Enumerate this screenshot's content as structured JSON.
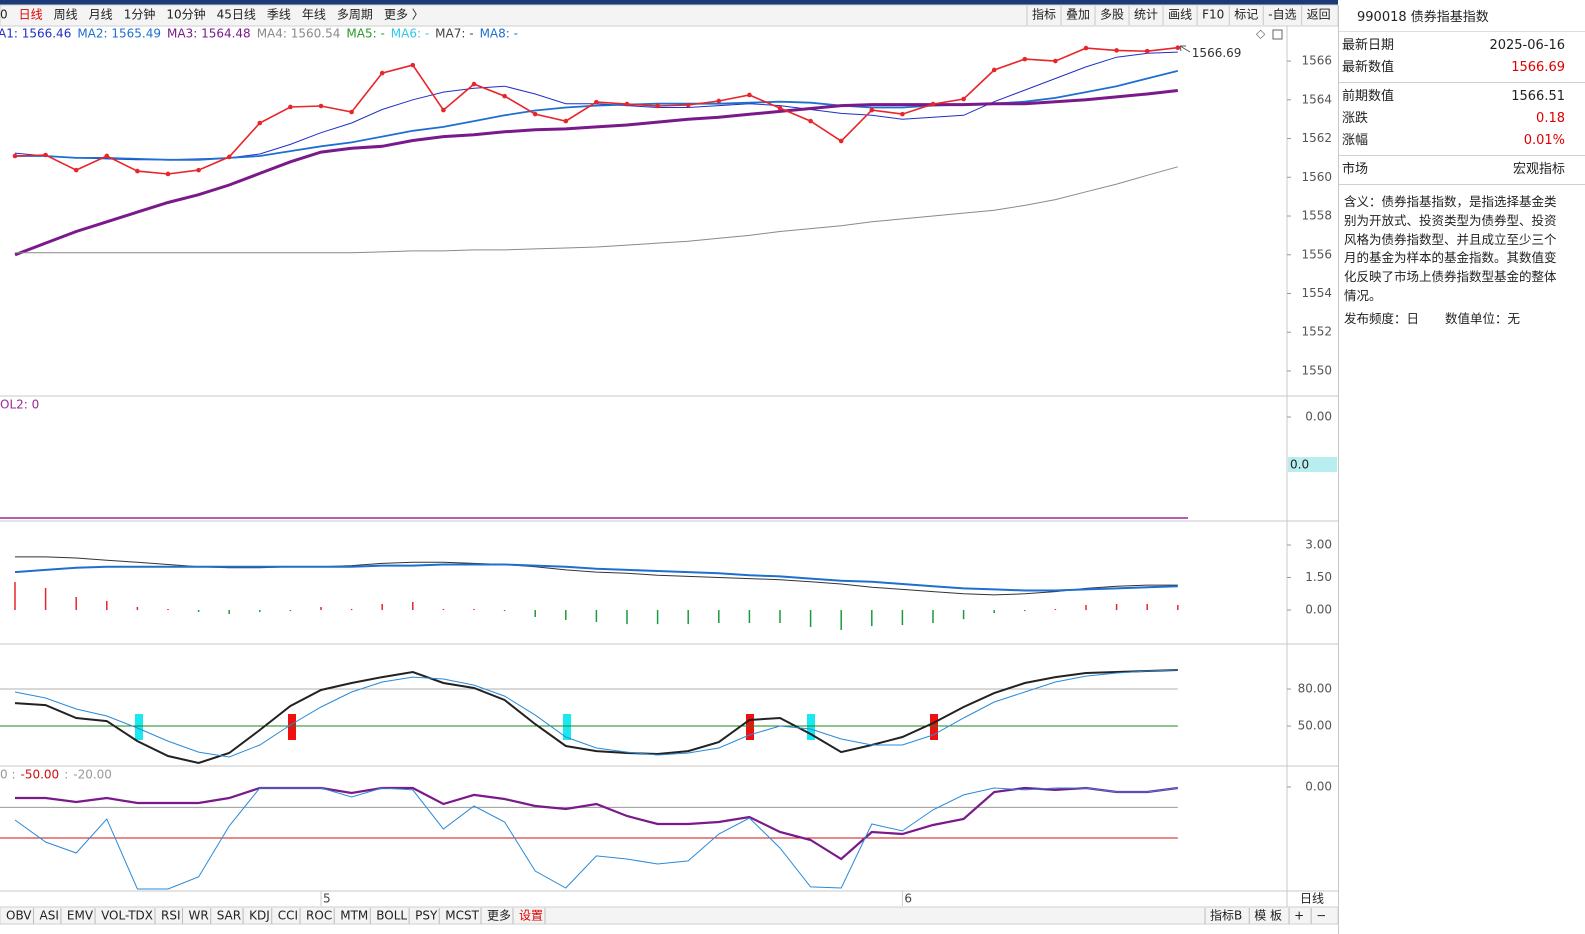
{
  "toolbar": {
    "left": [
      {
        "label": "0"
      },
      {
        "label": "日线",
        "active": true
      },
      {
        "label": "周线"
      },
      {
        "label": "月线"
      },
      {
        "label": "1分钟"
      },
      {
        "label": "10分钟"
      },
      {
        "label": "45日线"
      },
      {
        "label": "季线"
      },
      {
        "label": "年线"
      },
      {
        "label": "多周期"
      },
      {
        "label": "更多 〉"
      }
    ],
    "right": [
      "指标",
      "叠加",
      "多股",
      "统计",
      "画线",
      "F10",
      "标记",
      "-自选",
      "返回"
    ]
  },
  "chart_data": [
    {
      "type": "line",
      "categories": [
        null,
        null,
        null,
        null,
        null,
        null,
        null,
        null,
        null,
        null,
        "5",
        null,
        null,
        null,
        null,
        null,
        null,
        null,
        null,
        null,
        null,
        null,
        null,
        null,
        null,
        null,
        null,
        null,
        null,
        "6",
        null,
        null,
        null,
        null,
        null,
        null,
        null,
        null,
        null
      ],
      "ylim": [
        1548.76,
        1567.81
      ],
      "yticks": [
        1566,
        1564,
        1562,
        1560,
        1558,
        1556,
        1554,
        1552,
        1550
      ],
      "series": [
        {
          "label": "A1: 1566.46",
          "color": "#1f2fc8",
          "width": 1,
          "values": [
            1561.25,
            1561.1,
            1561.0,
            1560.95,
            1560.9,
            1560.9,
            1560.95,
            1561.0,
            1561.2,
            1561.7,
            1562.3,
            1562.8,
            1563.5,
            1564.0,
            1564.4,
            1564.6,
            1564.7,
            1564.3,
            1563.8,
            1563.8,
            1563.7,
            1563.6,
            1563.6,
            1563.7,
            1563.8,
            1563.7,
            1563.5,
            1563.3,
            1563.2,
            1563.0,
            1563.1,
            1563.2,
            1563.9,
            1564.5,
            1565.1,
            1565.7,
            1566.2,
            1566.4,
            1566.46
          ]
        },
        {
          "label": "MA2: 1565.49",
          "color": "#1e6fd0",
          "width": 1.8,
          "values": [
            1561.1,
            1561.1,
            1561.0,
            1561.0,
            1560.95,
            1560.9,
            1560.9,
            1561.0,
            1561.1,
            1561.35,
            1561.6,
            1561.8,
            1562.1,
            1562.4,
            1562.6,
            1562.9,
            1563.2,
            1563.45,
            1563.6,
            1563.7,
            1563.75,
            1563.8,
            1563.8,
            1563.8,
            1563.85,
            1563.9,
            1563.85,
            1563.7,
            1563.6,
            1563.6,
            1563.7,
            1563.75,
            1563.8,
            1563.9,
            1564.1,
            1564.4,
            1564.7,
            1565.1,
            1565.49
          ]
        },
        {
          "label": "MA3: 1564.48",
          "color": "#7a1a8a",
          "width": 3,
          "values": [
            1556.0,
            1556.6,
            1557.2,
            1557.7,
            1558.2,
            1558.7,
            1559.1,
            1559.6,
            1560.2,
            1560.8,
            1561.3,
            1561.5,
            1561.6,
            1561.9,
            1562.1,
            1562.2,
            1562.35,
            1562.45,
            1562.5,
            1562.6,
            1562.7,
            1562.85,
            1563.0,
            1563.1,
            1563.25,
            1563.4,
            1563.55,
            1563.7,
            1563.75,
            1563.75,
            1563.75,
            1563.75,
            1563.8,
            1563.8,
            1563.9,
            1564.0,
            1564.15,
            1564.3,
            1564.48
          ]
        },
        {
          "label": "MA4: 1560.54",
          "color": "#8a8a8a",
          "width": 1,
          "values": [
            1556.1,
            1556.1,
            1556.1,
            1556.1,
            1556.1,
            1556.1,
            1556.1,
            1556.1,
            1556.1,
            1556.1,
            1556.1,
            1556.1,
            1556.15,
            1556.2,
            1556.2,
            1556.25,
            1556.25,
            1556.3,
            1556.35,
            1556.4,
            1556.5,
            1556.6,
            1556.7,
            1556.85,
            1557.0,
            1557.2,
            1557.35,
            1557.5,
            1557.7,
            1557.85,
            1558.0,
            1558.15,
            1558.3,
            1558.55,
            1558.85,
            1559.25,
            1559.65,
            1560.1,
            1560.54
          ]
        },
        {
          "color": "#e8252a",
          "width": 1.6,
          "markers": true,
          "values": [
            1561.1,
            1561.15,
            1560.37,
            1561.1,
            1560.32,
            1560.17,
            1560.37,
            1561.05,
            1562.8,
            1563.63,
            1563.68,
            1563.37,
            1565.38,
            1565.79,
            1563.47,
            1564.81,
            1564.19,
            1563.26,
            1562.9,
            1563.88,
            1563.78,
            1563.68,
            1563.73,
            1563.94,
            1564.25,
            1563.57,
            1562.9,
            1561.87,
            1563.47,
            1563.26,
            1563.78,
            1564.04,
            1565.54,
            1566.1,
            1566.0,
            1566.67,
            1566.55,
            1566.51,
            1566.69
          ]
        }
      ],
      "legend_extra": [
        {
          "label": "MA5: -",
          "color": "#2a9a2a"
        },
        {
          "label": "MA6: -",
          "color": "#2fc8e8"
        },
        {
          "label": "MA7: -",
          "color": "#444444"
        },
        {
          "label": "MA8: -",
          "color": "#1e6fd0"
        }
      ],
      "annotation": "1566.69",
      "axis_period": "日线"
    },
    {
      "type": "line",
      "title": "OL2: 0",
      "ylim": [
        -1.03,
        0.2
      ],
      "yticks": [
        {
          "value": 0,
          "label": "0.00"
        }
      ],
      "current_label": "0.0"
    },
    {
      "type": "line",
      "ylim": [
        -1.52,
        4.06
      ],
      "yticks": [
        {
          "value": 3,
          "label": "3.00"
        },
        {
          "value": 1.5,
          "label": "1.50"
        },
        {
          "value": 0,
          "label": "0.00"
        }
      ],
      "series": [
        {
          "type": "bar",
          "up_color": "#e8252a",
          "down_color": "#1a9a3a",
          "values": [
            1.29,
            1.02,
            0.6,
            0.42,
            0.14,
            0.05,
            -0.09,
            -0.18,
            -0.09,
            -0.05,
            0.14,
            0.05,
            0.28,
            0.37,
            0.05,
            0.05,
            -0.05,
            -0.32,
            -0.46,
            -0.55,
            -0.65,
            -0.65,
            -0.65,
            -0.6,
            -0.6,
            -0.6,
            -0.78,
            -0.92,
            -0.74,
            -0.69,
            -0.6,
            -0.42,
            -0.14,
            -0.05,
            0.05,
            0.23,
            0.28,
            0.28,
            0.23
          ]
        },
        {
          "color": "#333333",
          "width": 1,
          "values": [
            2.45,
            2.45,
            2.4,
            2.3,
            2.2,
            2.1,
            2.0,
            1.95,
            1.95,
            2.0,
            2.0,
            2.05,
            2.15,
            2.2,
            2.2,
            2.15,
            2.1,
            2.0,
            1.85,
            1.75,
            1.7,
            1.6,
            1.55,
            1.5,
            1.45,
            1.4,
            1.3,
            1.2,
            1.05,
            0.95,
            0.85,
            0.75,
            0.7,
            0.75,
            0.85,
            1.0,
            1.1,
            1.15,
            1.15
          ]
        },
        {
          "color": "#1e6fd0",
          "width": 2,
          "values": [
            1.75,
            1.85,
            1.95,
            2.0,
            2.0,
            2.0,
            2.0,
            2.0,
            2.0,
            2.0,
            2.0,
            2.0,
            2.05,
            2.05,
            2.1,
            2.1,
            2.1,
            2.05,
            2.0,
            1.9,
            1.85,
            1.8,
            1.75,
            1.7,
            1.6,
            1.55,
            1.45,
            1.35,
            1.3,
            1.2,
            1.1,
            1.0,
            0.95,
            0.9,
            0.9,
            0.95,
            1.0,
            1.05,
            1.1
          ]
        }
      ]
    },
    {
      "type": "line",
      "ylim": [
        18.4,
        115.7
      ],
      "yticks": [
        {
          "value": 80,
          "label": "80.00"
        },
        {
          "value": 50,
          "label": "50.00"
        }
      ],
      "grid": true,
      "grid_colors": [
        "#b0b0b0",
        "#1a8a1a"
      ],
      "series": [
        {
          "color": "#222222",
          "width": 2,
          "values": [
            68.6,
            67,
            56.5,
            54,
            37.8,
            25.7,
            20,
            28.1,
            46.8,
            66.2,
            79.2,
            84.9,
            89.7,
            93.8,
            84.9,
            80.8,
            71.1,
            51.6,
            33.8,
            29.7,
            28.1,
            27.3,
            29.7,
            37,
            54.9,
            56.5,
            43.5,
            28.9,
            34.6,
            41.1,
            52.4,
            65.4,
            76.7,
            84.9,
            89.7,
            93,
            93.8,
            94.6,
            95.4
          ]
        },
        {
          "color": "#2a8ad8",
          "width": 1,
          "values": [
            77.6,
            72.7,
            63.8,
            58.1,
            48.4,
            37.8,
            28.9,
            24.9,
            34.6,
            50.8,
            65.4,
            77.6,
            85.7,
            89.7,
            88.1,
            83.2,
            74.3,
            58.9,
            41.1,
            32.2,
            28.9,
            26.5,
            28.1,
            32.2,
            42.7,
            50,
            47.6,
            39.5,
            34.6,
            34.6,
            42.7,
            56.5,
            69.5,
            77.6,
            85.7,
            90.5,
            93,
            94.6,
            95.4
          ]
        }
      ]
    },
    {
      "type": "line",
      "title": "0 :",
      "separator": ":",
      "ylim": [
        -101,
        19.6
      ],
      "yticks": [
        {
          "value": 0,
          "label": "0.00"
        }
      ],
      "levels": [
        {
          "value": -50,
          "label": "-50.00",
          "color": "#d01010"
        },
        {
          "value": -20,
          "label": "-20.00",
          "color": "#9a9a9a"
        }
      ],
      "series": [
        {
          "color": "#7a1a8a",
          "width": 2.2,
          "values": [
            -10.8,
            -10.8,
            -14.7,
            -10.8,
            -15.7,
            -15.7,
            -15.7,
            -10.8,
            -1,
            -1,
            -1,
            -5.9,
            -1,
            -1,
            -16.7,
            -7.8,
            -11.8,
            -18.6,
            -21.6,
            -16.7,
            -28.4,
            -36.3,
            -36.3,
            -34.3,
            -29.4,
            -44.1,
            -52,
            -70.6,
            -44.1,
            -46.1,
            -37.3,
            -31.4,
            -4.9,
            -1,
            -2.9,
            -1,
            -4.9,
            -4.9,
            -1
          ]
        },
        {
          "color": "#2a8ad8",
          "width": 1,
          "values": [
            -32.4,
            -53.9,
            -64.7,
            -31.4,
            -100,
            -100,
            -88.2,
            -38.2,
            -1,
            -1,
            -1,
            -9.8,
            -1,
            -2.9,
            -41.2,
            -18.6,
            -34.3,
            -82.4,
            -99,
            -67.6,
            -70.6,
            -75.5,
            -72.5,
            -46.1,
            -30.4,
            -59.8,
            -98,
            -99,
            -36.3,
            -43.1,
            -22.5,
            -7.8,
            -1,
            -2.9,
            -1,
            -1,
            -4.9,
            -4.9,
            -1
          ]
        }
      ]
    }
  ],
  "bottom_tabs": {
    "left": [
      {
        "label": "OBV"
      },
      {
        "label": "ASI"
      },
      {
        "label": "EMV"
      },
      {
        "label": "VOL-TDX"
      },
      {
        "label": "RSI"
      },
      {
        "label": "WR"
      },
      {
        "label": "SAR"
      },
      {
        "label": "KDJ"
      },
      {
        "label": "CCI"
      },
      {
        "label": "ROC"
      },
      {
        "label": "MTM"
      },
      {
        "label": "BOLL"
      },
      {
        "label": "PSY"
      },
      {
        "label": "MCST"
      },
      {
        "label": "更多"
      },
      {
        "label": "设置",
        "active": true
      }
    ],
    "right": [
      "指标B",
      "模 板",
      "+",
      "−"
    ]
  },
  "info": {
    "title": "990018 债券指基指数",
    "groups": [
      [
        {
          "label": "最新日期",
          "value": "2025-06-16"
        },
        {
          "label": "最新数值",
          "value": "1566.69",
          "red": true
        }
      ],
      [
        {
          "label": "前期数值",
          "value": "1566.51"
        },
        {
          "label": "涨跌",
          "value": "0.18",
          "red": true
        },
        {
          "label": "涨幅",
          "value": "0.01%",
          "red": true
        }
      ],
      [
        {
          "label": "市场",
          "value": "宏观指标"
        }
      ]
    ],
    "description": "含义：债券指基指数，是指选择基金类别为开放式、投资类型为债券型、投资风格为债券指数型、并且成立至少三个月的基金为样本的基金指数。其数值变化反映了市场上债券指数型基金的整体情况。",
    "footer": [
      "发布频度：日",
      "数值单位：无"
    ]
  }
}
